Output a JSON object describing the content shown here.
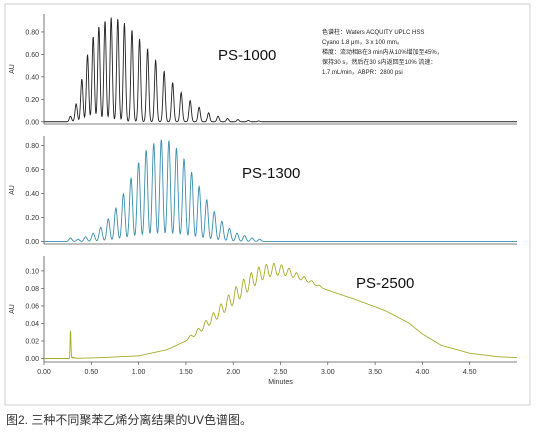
{
  "caption": "图2. 三种不同聚苯乙烯分离结果的UV色谱图。",
  "conditions": [
    "色谱柱：Waters ACQUITY UPLC HSS",
    "Cyano 1.8 μm，3 x 100 mm。",
    "梯度：流动相B在3 min内从10%增加至45%，",
    "保持30 s，然后在30 s内返回至10% 流速：",
    "1.7 mL/min，ABPR：2800 psi"
  ],
  "chart_data": [
    {
      "type": "line",
      "name": "PS-1000",
      "ylabel": "AU",
      "color": "#222222",
      "xlim": [
        0,
        5.0
      ],
      "ylim": [
        -0.02,
        0.96
      ],
      "yticks": [
        0.0,
        0.2,
        0.4,
        0.6,
        0.8
      ],
      "ytick_labels": [
        "0.00",
        "0.20",
        "0.40",
        "0.60",
        "0.80"
      ],
      "peaks": {
        "times": [
          0.28,
          0.34,
          0.4,
          0.46,
          0.52,
          0.58,
          0.645,
          0.71,
          0.78,
          0.85,
          0.93,
          1.01,
          1.095,
          1.18,
          1.27,
          1.36,
          1.45,
          1.545,
          1.64,
          1.74,
          1.84,
          1.94,
          2.05,
          2.16,
          2.27
        ],
        "heights": [
          0.05,
          0.16,
          0.38,
          0.6,
          0.76,
          0.85,
          0.9,
          0.93,
          0.92,
          0.88,
          0.82,
          0.74,
          0.65,
          0.55,
          0.45,
          0.35,
          0.26,
          0.19,
          0.13,
          0.08,
          0.05,
          0.03,
          0.02,
          0.012,
          0.007
        ],
        "width": 0.012
      }
    },
    {
      "type": "line",
      "name": "PS-1300",
      "ylabel": "AU",
      "color": "#3a8fae",
      "xlim": [
        0,
        5.0
      ],
      "ylim": [
        -0.02,
        0.88
      ],
      "yticks": [
        0.0,
        0.2,
        0.4,
        0.6,
        0.8
      ],
      "ytick_labels": [
        "0.00",
        "0.20",
        "0.40",
        "0.60",
        "0.80"
      ],
      "peaks": {
        "times": [
          0.28,
          0.36,
          0.44,
          0.52,
          0.6,
          0.68,
          0.76,
          0.84,
          0.92,
          1.0,
          1.08,
          1.16,
          1.24,
          1.32,
          1.4,
          1.48,
          1.56,
          1.64,
          1.72,
          1.8,
          1.88,
          1.96,
          2.04,
          2.12,
          2.2,
          2.28
        ],
        "heights": [
          0.03,
          0.02,
          0.04,
          0.07,
          0.12,
          0.19,
          0.28,
          0.4,
          0.53,
          0.66,
          0.76,
          0.82,
          0.85,
          0.84,
          0.78,
          0.69,
          0.58,
          0.46,
          0.35,
          0.25,
          0.17,
          0.11,
          0.07,
          0.05,
          0.03,
          0.02
        ],
        "width": 0.016
      }
    },
    {
      "type": "line",
      "name": "PS-2500",
      "ylabel": "AU",
      "xlabel": "Minutes",
      "color": "#a8ab2a",
      "xlim": [
        0,
        5.0
      ],
      "ylim": [
        -0.004,
        0.117
      ],
      "yticks": [
        0.0,
        0.02,
        0.04,
        0.06,
        0.08,
        0.1
      ],
      "ytick_labels": [
        "0.00",
        "0.02",
        "0.04",
        "0.06",
        "0.08",
        "0.10"
      ],
      "xticks": [
        0.0,
        0.5,
        1.0,
        1.5,
        2.0,
        2.5,
        3.0,
        3.5,
        4.0,
        4.5
      ],
      "xtick_labels": [
        "0.00",
        "0.50",
        "1.00",
        "1.50",
        "2.00",
        "2.50",
        "3.00",
        "3.50",
        "4.00",
        "4.50"
      ],
      "envelope": {
        "x": [
          0.0,
          0.3,
          0.6,
          1.0,
          1.3,
          1.6,
          1.8,
          2.0,
          2.2,
          2.3,
          2.4,
          2.5,
          2.6,
          2.8,
          3.0,
          3.3,
          3.6,
          3.85,
          4.0,
          4.2,
          4.5,
          4.8,
          5.0
        ],
        "y": [
          0.0,
          0.0,
          0.001,
          0.003,
          0.01,
          0.025,
          0.04,
          0.058,
          0.077,
          0.086,
          0.091,
          0.093,
          0.092,
          0.086,
          0.078,
          0.067,
          0.055,
          0.041,
          0.028,
          0.015,
          0.006,
          0.002,
          0.001
        ]
      },
      "ripples": {
        "times": [
          1.55,
          1.63,
          1.71,
          1.79,
          1.87,
          1.95,
          2.03,
          2.11,
          2.19,
          2.27,
          2.35,
          2.43,
          2.51,
          2.59,
          2.67,
          2.75,
          2.83,
          2.91
        ],
        "heights": [
          0.004,
          0.007,
          0.01,
          0.013,
          0.016,
          0.019,
          0.021,
          0.022,
          0.022,
          0.021,
          0.019,
          0.017,
          0.014,
          0.011,
          0.008,
          0.006,
          0.004,
          0.002
        ],
        "width": 0.018
      },
      "spike": {
        "time": 0.28,
        "height": 0.033
      }
    }
  ]
}
